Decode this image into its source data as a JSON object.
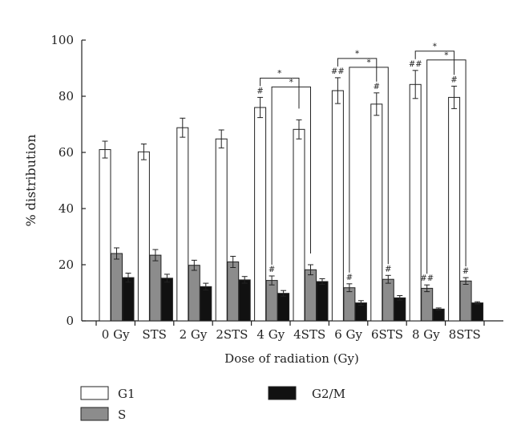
{
  "chart_data": {
    "type": "bar",
    "categories": [
      "0 Gy",
      "STS",
      "2 Gy",
      "2STS",
      "4 Gy",
      "4STS",
      "6 Gy",
      "6STS",
      "8 Gy",
      "8STS"
    ],
    "series": [
      {
        "name": "G1",
        "values": [
          61,
          60.2,
          68.8,
          64.8,
          76,
          68.2,
          82,
          77.2,
          84.2,
          79.6
        ],
        "errors": [
          3.0,
          2.8,
          3.4,
          3.2,
          3.6,
          3.4,
          4.6,
          4.0,
          5.0,
          4.0
        ],
        "color": "#ffffff"
      },
      {
        "name": "S",
        "values": [
          24,
          23.4,
          19.8,
          21,
          14.4,
          18.2,
          11.8,
          14.8,
          11.6,
          14.2
        ],
        "errors": [
          2.0,
          2.0,
          1.8,
          2.0,
          1.6,
          1.8,
          1.4,
          1.4,
          1.2,
          1.2
        ],
        "color": "#8c8c8c"
      },
      {
        "name": "G2/M",
        "values": [
          15.4,
          15.2,
          12.2,
          14.6,
          9.8,
          14.0,
          6.4,
          8.2,
          4.2,
          6.4
        ],
        "errors": [
          1.6,
          1.4,
          1.2,
          1.2,
          1.0,
          1.0,
          0.8,
          0.8,
          0.4,
          0.4
        ],
        "color": "#111111"
      }
    ],
    "xlabel": "Dose of radiation (Gy)",
    "ylabel": "% distribution",
    "ylim": [
      0,
      100
    ],
    "yticks": [
      0,
      20,
      40,
      60,
      80,
      100
    ],
    "grid": false,
    "legend_position": "bottom",
    "annotations": [
      {
        "text": "#",
        "category": "4 Gy",
        "series": "G1"
      },
      {
        "text": "##",
        "category": "6 Gy",
        "series": "G1"
      },
      {
        "text": "#",
        "category": "6STS",
        "series": "G1"
      },
      {
        "text": "##",
        "category": "8 Gy",
        "series": "G1"
      },
      {
        "text": "#",
        "category": "8STS",
        "series": "G1"
      },
      {
        "text": "#",
        "category": "4 Gy",
        "series": "S"
      },
      {
        "text": "#",
        "category": "6 Gy",
        "series": "S"
      },
      {
        "text": "#",
        "category": "6STS",
        "series": "S"
      },
      {
        "text": "##",
        "category": "8 Gy",
        "series": "S"
      },
      {
        "text": "#",
        "category": "8STS",
        "series": "S"
      }
    ],
    "significance": [
      {
        "text": "*",
        "from": "4 Gy",
        "to": "4STS",
        "series": "G1"
      },
      {
        "text": "*",
        "from": "4 Gy",
        "to": "4STS",
        "series": "S"
      },
      {
        "text": "*",
        "from": "6 Gy",
        "to": "6STS",
        "series": "G1"
      },
      {
        "text": "*",
        "from": "6 Gy",
        "to": "6STS",
        "series": "S"
      },
      {
        "text": "*",
        "from": "8 Gy",
        "to": "8STS",
        "series": "G1"
      },
      {
        "text": "*",
        "from": "8 Gy",
        "to": "8STS",
        "series": "S"
      }
    ]
  }
}
